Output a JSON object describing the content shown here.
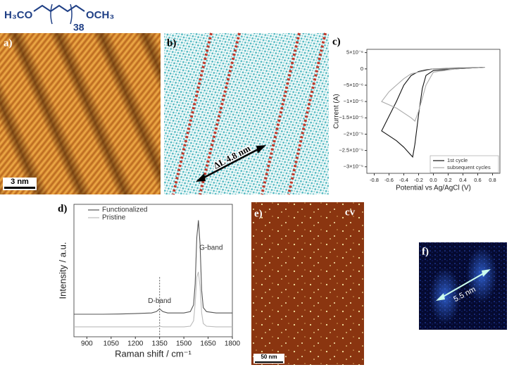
{
  "structure": {
    "left": "H₃CO",
    "repeat": "38",
    "right": "OCH₃"
  },
  "panels": {
    "a": {
      "label": "a)",
      "scale_bar": "3 nm"
    },
    "b": {
      "label": "b)",
      "annotation": "ΔL 4.8 nm"
    },
    "e": {
      "label": "e)",
      "tag": "cv",
      "scale_bar": "50 nm"
    },
    "f": {
      "label": "f)",
      "annotation": "5.5 nm"
    }
  },
  "chart_data": [
    {
      "type": "line",
      "label": "c)",
      "xlabel": "Potential vs Ag/AgCl (V)",
      "ylabel": "Current (A)",
      "xlim": [
        -0.9,
        0.9
      ],
      "ylim": [
        -3.2e-05,
        6e-06
      ],
      "xticks": [
        -0.8,
        -0.6,
        -0.4,
        -0.2,
        {
          "value": 0,
          "label": "0.0"
        },
        0.2,
        0.4,
        0.6,
        0.8
      ],
      "yticks": [
        {
          "value": 5e-06,
          "label": "5×10⁻⁶"
        },
        0,
        {
          "value": -5e-06,
          "label": "−5×10⁻⁶"
        },
        {
          "value": -1e-05,
          "label": "−1×10⁻⁵"
        },
        {
          "value": -1.5e-05,
          "label": "−1.5×10⁻⁵"
        },
        {
          "value": -2e-05,
          "label": "−2×10⁻⁵"
        },
        {
          "value": -2.5e-05,
          "label": "−2.5×10⁻⁵"
        },
        {
          "value": -3e-05,
          "label": "−3×10⁻⁵"
        }
      ],
      "legend": "lower right",
      "series": [
        {
          "name": "1st cycle",
          "color": "#111111",
          "x": [
            0.7,
            0.3,
            0.0,
            -0.1,
            -0.15,
            -0.2,
            -0.25,
            -0.28,
            -0.32,
            -0.4,
            -0.5,
            -0.6,
            -0.7,
            -0.6,
            -0.5,
            -0.4,
            -0.3,
            -0.2,
            -0.1,
            0.0,
            0.3,
            0.7
          ],
          "values": [
            5e-07,
            0,
            -5e-07,
            -2e-06,
            -6e-06,
            -1.4e-05,
            -2.3e-05,
            -2.7e-05,
            -2.6e-05,
            -2.4e-05,
            -2.2e-05,
            -2.05e-05,
            -1.9e-05,
            -1.45e-05,
            -1e-05,
            -5e-06,
            -2e-06,
            -8e-07,
            -3e-07,
            0,
            2e-07,
            5e-07
          ]
        },
        {
          "name": "subsequent cycles",
          "color": "#aaaaaa",
          "x": [
            0.7,
            0.3,
            0.0,
            -0.1,
            -0.2,
            -0.25,
            -0.3,
            -0.4,
            -0.5,
            -0.7,
            -0.6,
            -0.5,
            -0.4,
            -0.3,
            -0.2,
            -0.1,
            0.0,
            0.3,
            0.7
          ],
          "values": [
            5e-07,
            0,
            -1e-06,
            -5e-06,
            -1.3e-05,
            -1.6e-05,
            -1.5e-05,
            -1.35e-05,
            -1.2e-05,
            -1e-05,
            -7e-06,
            -5e-06,
            -3e-06,
            -1.5e-06,
            -1e-06,
            -5e-07,
            0,
            0,
            5e-07
          ]
        }
      ]
    },
    {
      "type": "line",
      "label": "d)",
      "xlabel": "Raman shift / cm⁻¹",
      "ylabel": "Intensity / a.u.",
      "xlim": [
        820,
        1800
      ],
      "ylim": [
        0,
        100
      ],
      "xticks": [
        900,
        1050,
        1200,
        1350,
        1500,
        1650,
        1800
      ],
      "legend": "upper left",
      "reference_line": 1350,
      "annotations": [
        "D-band",
        "G-band"
      ],
      "series": [
        {
          "name": "Functionalized",
          "color": "#555555",
          "x": [
            820,
            900,
            1000,
            1100,
            1200,
            1300,
            1330,
            1350,
            1370,
            1400,
            1500,
            1540,
            1560,
            1570,
            1580,
            1590,
            1600,
            1610,
            1620,
            1640,
            1700,
            1800
          ],
          "values": [
            17,
            17,
            17,
            17.2,
            17.5,
            18,
            19,
            21,
            19,
            18,
            18,
            19,
            24,
            40,
            75,
            88,
            70,
            35,
            22,
            19,
            18,
            18
          ]
        },
        {
          "name": "Pristine",
          "color": "#bbbbbb",
          "x": [
            820,
            900,
            1000,
            1100,
            1200,
            1300,
            1330,
            1350,
            1370,
            1400,
            1500,
            1540,
            1560,
            1570,
            1580,
            1590,
            1600,
            1610,
            1620,
            1640,
            1700,
            1800
          ],
          "values": [
            7.5,
            7.5,
            7.5,
            7.5,
            7.5,
            7.5,
            7.5,
            8,
            7.5,
            7.5,
            7.5,
            8,
            12,
            25,
            45,
            49,
            38,
            18,
            10,
            8,
            7.5,
            7.5
          ]
        }
      ]
    }
  ]
}
